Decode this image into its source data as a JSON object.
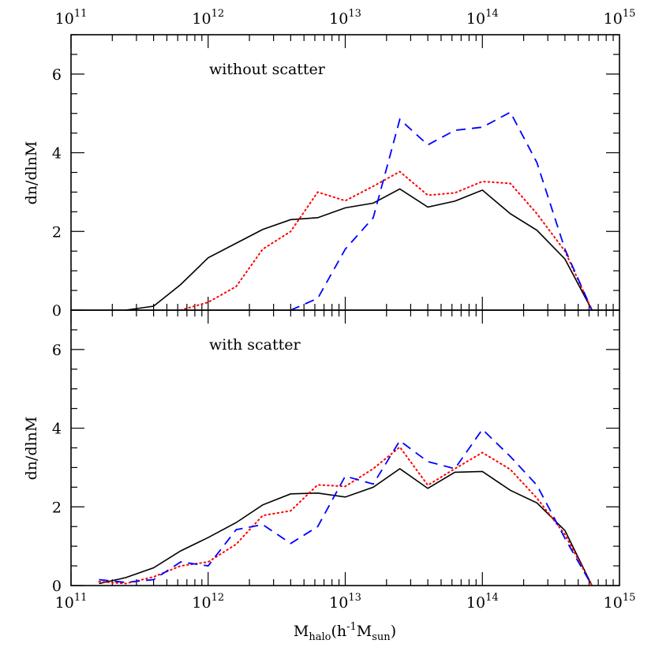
{
  "chart_data": [
    {
      "type": "line",
      "panel": "top",
      "annotation": "without scatter",
      "ylabel": "dn/dlnM",
      "xscale": "log",
      "xlim": [
        100000000000.0,
        1000000000000000.0
      ],
      "ylim": [
        0,
        7
      ],
      "yticks": [
        0,
        2,
        4,
        6
      ],
      "x_tick_labels_top": [
        "10^11",
        "10^12",
        "10^13",
        "10^14",
        "10^15"
      ],
      "series": [
        {
          "color": "#000000",
          "style": "solid",
          "x": [
            250000000000.0,
            400000000000.0,
            630000000000.0,
            1000000000000.0,
            1600000000000.0,
            2500000000000.0,
            4000000000000.0,
            6300000000000.0,
            10000000000000.0,
            16000000000000.0,
            25000000000000.0,
            40000000000000.0,
            63000000000000.0,
            100000000000000.0,
            160000000000000.0,
            250000000000000.0,
            400000000000000.0,
            630000000000000.0
          ],
          "y": [
            0,
            0.1,
            0.65,
            1.33,
            1.7,
            2.05,
            2.3,
            2.35,
            2.6,
            2.72,
            3.08,
            2.62,
            2.77,
            3.05,
            2.45,
            2.03,
            1.3,
            0
          ]
        },
        {
          "color": "#ff0000",
          "style": "dotted",
          "x": [
            630000000000.0,
            1000000000000.0,
            1600000000000.0,
            2500000000000.0,
            4000000000000.0,
            6300000000000.0,
            10000000000000.0,
            16000000000000.0,
            25000000000000.0,
            40000000000000.0,
            63000000000000.0,
            100000000000000.0,
            160000000000000.0,
            250000000000000.0,
            400000000000000.0,
            630000000000000.0
          ],
          "y": [
            0,
            0.2,
            0.6,
            1.55,
            2.0,
            3.0,
            2.78,
            3.15,
            3.52,
            2.92,
            2.98,
            3.27,
            3.22,
            2.45,
            1.5,
            0
          ]
        },
        {
          "color": "#0000ff",
          "style": "dashed",
          "x": [
            4000000000000.0,
            6300000000000.0,
            10000000000000.0,
            16000000000000.0,
            25000000000000.0,
            40000000000000.0,
            63000000000000.0,
            100000000000000.0,
            160000000000000.0,
            250000000000000.0,
            400000000000000.0,
            630000000000000.0
          ],
          "y": [
            0,
            0.3,
            1.55,
            2.35,
            4.85,
            4.2,
            4.57,
            4.65,
            5.03,
            3.75,
            1.55,
            0
          ]
        }
      ]
    },
    {
      "type": "line",
      "panel": "bottom",
      "annotation": "with scatter",
      "ylabel": "dn/dlnM",
      "xlabel_main": "M",
      "xlabel_sub": "halo",
      "xlabel_open": "(h",
      "xlabel_sup": "-1",
      "xlabel_m": "M",
      "xlabel_sub2": "sun",
      "xlabel_close": ")",
      "xscale": "log",
      "xlim": [
        100000000000.0,
        1000000000000000.0
      ],
      "ylim": [
        0,
        7
      ],
      "yticks": [
        0,
        2,
        4,
        6
      ],
      "x_tick_labels_bottom": [
        "10^11",
        "10^12",
        "10^13",
        "10^14",
        "10^15"
      ],
      "series": [
        {
          "color": "#000000",
          "style": "solid",
          "x": [
            160000000000.0,
            250000000000.0,
            400000000000.0,
            630000000000.0,
            1000000000000.0,
            1600000000000.0,
            2500000000000.0,
            4000000000000.0,
            6300000000000.0,
            10000000000000.0,
            16000000000000.0,
            25000000000000.0,
            40000000000000.0,
            63000000000000.0,
            100000000000000.0,
            160000000000000.0,
            250000000000000.0,
            400000000000000.0,
            630000000000000.0
          ],
          "y": [
            0.05,
            0.2,
            0.45,
            0.88,
            1.22,
            1.6,
            2.05,
            2.33,
            2.35,
            2.25,
            2.5,
            2.97,
            2.47,
            2.88,
            2.9,
            2.42,
            2.1,
            1.4,
            0
          ]
        },
        {
          "color": "#ff0000",
          "style": "dotted",
          "x": [
            160000000000.0,
            250000000000.0,
            400000000000.0,
            630000000000.0,
            1000000000000.0,
            1600000000000.0,
            2500000000000.0,
            4000000000000.0,
            6300000000000.0,
            10000000000000.0,
            16000000000000.0,
            25000000000000.0,
            40000000000000.0,
            63000000000000.0,
            100000000000000.0,
            160000000000000.0,
            250000000000000.0,
            400000000000000.0,
            630000000000000.0
          ],
          "y": [
            0.1,
            0.05,
            0.22,
            0.5,
            0.6,
            1.05,
            1.78,
            1.9,
            2.56,
            2.52,
            2.97,
            3.52,
            2.55,
            2.97,
            3.38,
            2.95,
            2.22,
            1.3,
            0
          ]
        },
        {
          "color": "#0000ff",
          "style": "dashed",
          "x": [
            160000000000.0,
            250000000000.0,
            400000000000.0,
            630000000000.0,
            1000000000000.0,
            1600000000000.0,
            2500000000000.0,
            4000000000000.0,
            6300000000000.0,
            10000000000000.0,
            16000000000000.0,
            25000000000000.0,
            40000000000000.0,
            63000000000000.0,
            100000000000000.0,
            160000000000000.0,
            250000000000000.0,
            400000000000000.0,
            630000000000000.0
          ],
          "y": [
            0.15,
            0.08,
            0.15,
            0.6,
            0.5,
            1.42,
            1.55,
            1.07,
            1.5,
            2.78,
            2.58,
            3.68,
            3.15,
            2.97,
            3.97,
            3.28,
            2.55,
            1.2,
            0
          ]
        }
      ]
    }
  ]
}
